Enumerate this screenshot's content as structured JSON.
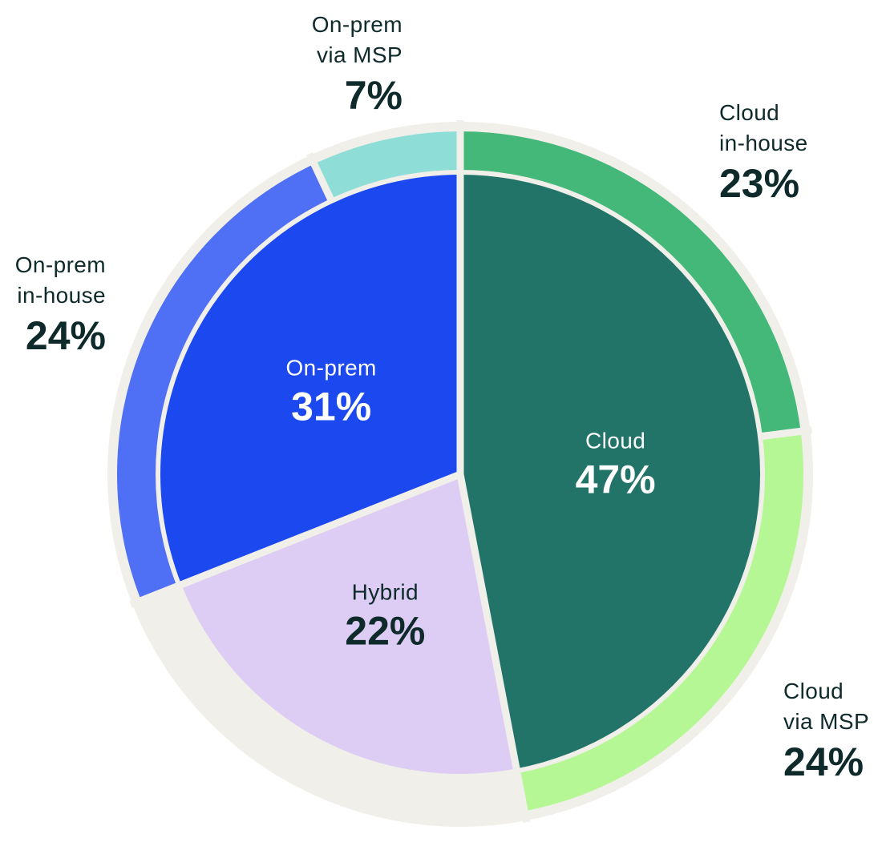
{
  "chart_data": {
    "type": "pie",
    "variant": "nested-donut",
    "title": "",
    "start_angle_deg": 0,
    "direction": "clockwise",
    "background_ring_color": "#f1efe9",
    "text_color_dark": "#0f2a2a",
    "text_color_light": "#ffffff",
    "inner": [
      {
        "label": "Cloud",
        "value_text": "47%",
        "value": 47,
        "color": "#237468",
        "text": "light"
      },
      {
        "label": "Hybrid",
        "value_text": "22%",
        "value": 22,
        "color": "#ddcdf4",
        "text": "dark"
      },
      {
        "label": "On-prem",
        "value_text": "31%",
        "value": 31,
        "color": "#1c48f0",
        "text": "light"
      }
    ],
    "outer": [
      {
        "label_lines": [
          "Cloud",
          "in-house"
        ],
        "value_text": "23%",
        "value": 23,
        "color": "#44b879",
        "text": "dark"
      },
      {
        "label_lines": [
          "Cloud",
          "via MSP"
        ],
        "value_text": "24%",
        "value": 24,
        "color": "#b5f794",
        "text": "dark"
      },
      {
        "label_lines": [],
        "value_text": "",
        "value": 22,
        "color": null,
        "text": "dark"
      },
      {
        "label_lines": [
          "On-prem",
          "in-house"
        ],
        "value_text": "24%",
        "value": 24,
        "color": "#4f6ff5",
        "text": "dark"
      },
      {
        "label_lines": [
          "On-prem",
          "via MSP"
        ],
        "value_text": "7%",
        "value": 7,
        "color": "#8fddd7",
        "text": "dark"
      }
    ]
  }
}
